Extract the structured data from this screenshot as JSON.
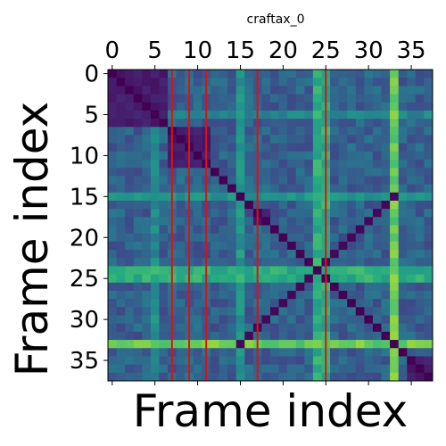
{
  "chart_data": {
    "type": "heatmap",
    "title": "craftax_0",
    "xlabel": "Frame index",
    "ylabel": "Frame index",
    "n": 38,
    "colormap": "viridis",
    "x_ticks": [
      0,
      5,
      10,
      15,
      20,
      25,
      30,
      35
    ],
    "y_ticks": [
      0,
      5,
      10,
      15,
      20,
      25,
      30,
      35
    ],
    "x_tick_position": "top",
    "grid": false,
    "vertical_markers": {
      "color": "#e01010",
      "x": [
        7,
        9,
        11,
        17,
        25
      ]
    },
    "diagonal_blocks": [
      {
        "start": 0,
        "end": 6
      },
      {
        "start": 7,
        "end": 11
      },
      {
        "start": 17,
        "end": 18
      },
      {
        "start": 35,
        "end": 37
      }
    ],
    "bright_rows": [
      {
        "index": 33,
        "value": 0.85
      },
      {
        "index": 15,
        "value": 0.6
      },
      {
        "index": 5,
        "value": 0.55
      },
      {
        "index": 24,
        "value": 0.7
      },
      {
        "index": 25,
        "value": 0.65
      }
    ],
    "bright_cols": [
      {
        "index": 33,
        "value": 0.85
      },
      {
        "index": 25,
        "value": 0.7
      },
      {
        "index": 24,
        "value": 0.6
      }
    ],
    "anti_diagonal_segments": [
      {
        "from": [
          24,
          24
        ],
        "to": [
          33,
          15
        ]
      },
      {
        "from": [
          24,
          24
        ],
        "to": [
          30,
          30
        ]
      }
    ]
  }
}
